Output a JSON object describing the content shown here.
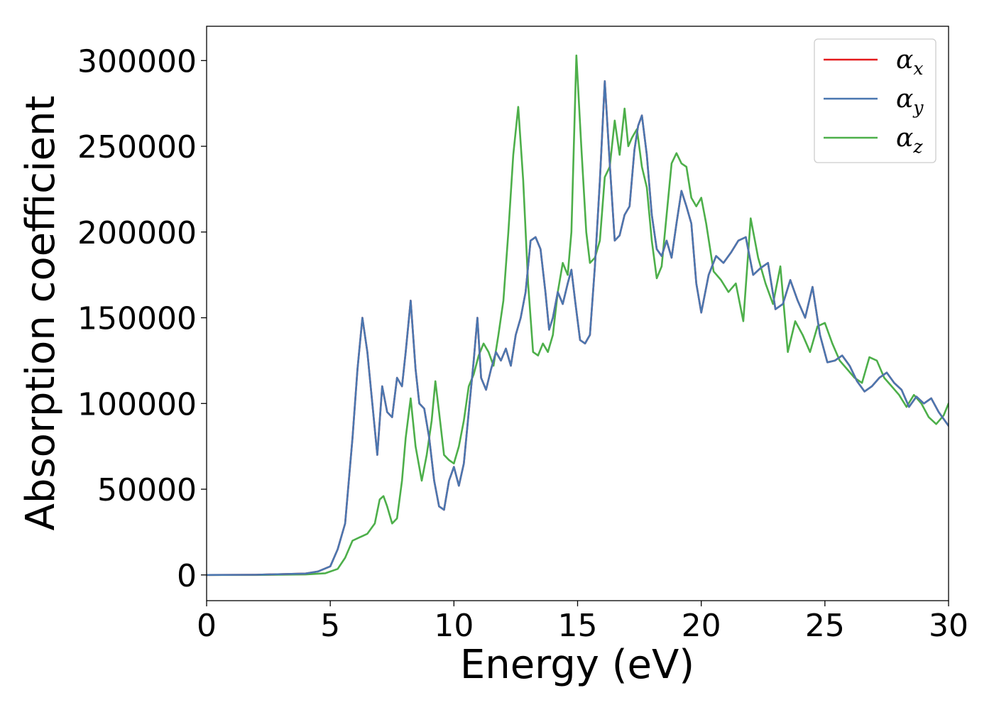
{
  "chart_data": {
    "type": "line",
    "title": "",
    "xlabel": "Energy (eV)",
    "ylabel": "Absorption coefficient",
    "xlim": [
      0,
      30
    ],
    "ylim": [
      -15000,
      320000
    ],
    "xticks": [
      0,
      5,
      10,
      15,
      20,
      25,
      30
    ],
    "yticks": [
      0,
      50000,
      100000,
      150000,
      200000,
      250000,
      300000
    ],
    "xtick_labels": [
      "0",
      "5",
      "10",
      "15",
      "20",
      "25",
      "30"
    ],
    "ytick_labels": [
      "0",
      "50000",
      "100000",
      "150000",
      "200000",
      "250000",
      "300000"
    ],
    "grid": false,
    "legend_position": "top-right",
    "series": [
      {
        "name": "α_x",
        "label_main": "α",
        "label_sub": "x",
        "color": "#e41a1c",
        "x": [
          0,
          2,
          4,
          4.5,
          5,
          5.3,
          5.6,
          5.9,
          6.1,
          6.3,
          6.5,
          6.7,
          6.9,
          7.1,
          7.3,
          7.5,
          7.7,
          7.9,
          8.05,
          8.25,
          8.45,
          8.6,
          8.8,
          9.0,
          9.2,
          9.4,
          9.6,
          9.8,
          10.0,
          10.2,
          10.4,
          10.6,
          10.8,
          10.95,
          11.1,
          11.3,
          11.5,
          11.7,
          11.9,
          12.1,
          12.3,
          12.5,
          12.7,
          12.9,
          13.1,
          13.3,
          13.5,
          13.7,
          13.85,
          14.0,
          14.2,
          14.4,
          14.6,
          14.75,
          14.9,
          15.1,
          15.3,
          15.5,
          15.7,
          15.9,
          16.1,
          16.3,
          16.5,
          16.7,
          16.9,
          17.1,
          17.3,
          17.45,
          17.6,
          17.8,
          18.0,
          18.2,
          18.4,
          18.6,
          18.8,
          19.0,
          19.2,
          19.4,
          19.6,
          19.8,
          20.0,
          20.3,
          20.6,
          20.9,
          21.2,
          21.5,
          21.8,
          22.1,
          22.4,
          22.7,
          23.0,
          23.3,
          23.6,
          23.9,
          24.2,
          24.5,
          24.8,
          25.1,
          25.4,
          25.7,
          26.0,
          26.3,
          26.6,
          26.9,
          27.2,
          27.5,
          27.8,
          28.1,
          28.4,
          28.7,
          29.0,
          29.3,
          29.6,
          30.0
        ],
        "y": [
          0,
          100,
          800,
          2000,
          5000,
          15000,
          30000,
          80000,
          120000,
          150000,
          130000,
          100000,
          70000,
          110000,
          95000,
          92000,
          115000,
          110000,
          130000,
          160000,
          120000,
          100000,
          97000,
          80000,
          55000,
          40000,
          38000,
          55000,
          63000,
          52000,
          65000,
          95000,
          125000,
          150000,
          115000,
          108000,
          120000,
          130000,
          125000,
          132000,
          122000,
          140000,
          150000,
          165000,
          195000,
          197000,
          190000,
          165000,
          143000,
          150000,
          165000,
          158000,
          170000,
          178000,
          160000,
          137000,
          135000,
          140000,
          180000,
          230000,
          288000,
          240000,
          195000,
          198000,
          210000,
          215000,
          248000,
          262000,
          268000,
          245000,
          210000,
          190000,
          186000,
          195000,
          185000,
          205000,
          224000,
          215000,
          205000,
          170000,
          153000,
          175000,
          186000,
          182000,
          188000,
          195000,
          197000,
          175000,
          179000,
          182000,
          155000,
          158000,
          172000,
          160000,
          150000,
          168000,
          140000,
          124000,
          125000,
          128000,
          122000,
          113000,
          107000,
          110000,
          115000,
          118000,
          112000,
          108000,
          98000,
          104000,
          100000,
          103000,
          95000,
          87000
        ]
      },
      {
        "name": "α_y",
        "label_main": "α",
        "label_sub": "y",
        "color": "#4a77b0",
        "x": [
          0,
          2,
          4,
          4.5,
          5,
          5.3,
          5.6,
          5.9,
          6.1,
          6.3,
          6.5,
          6.7,
          6.9,
          7.1,
          7.3,
          7.5,
          7.7,
          7.9,
          8.05,
          8.25,
          8.45,
          8.6,
          8.8,
          9.0,
          9.2,
          9.4,
          9.6,
          9.8,
          10.0,
          10.2,
          10.4,
          10.6,
          10.8,
          10.95,
          11.1,
          11.3,
          11.5,
          11.7,
          11.9,
          12.1,
          12.3,
          12.5,
          12.7,
          12.9,
          13.1,
          13.3,
          13.5,
          13.7,
          13.85,
          14.0,
          14.2,
          14.4,
          14.6,
          14.75,
          14.9,
          15.1,
          15.3,
          15.5,
          15.7,
          15.9,
          16.1,
          16.3,
          16.5,
          16.7,
          16.9,
          17.1,
          17.3,
          17.45,
          17.6,
          17.8,
          18.0,
          18.2,
          18.4,
          18.6,
          18.8,
          19.0,
          19.2,
          19.4,
          19.6,
          19.8,
          20.0,
          20.3,
          20.6,
          20.9,
          21.2,
          21.5,
          21.8,
          22.1,
          22.4,
          22.7,
          23.0,
          23.3,
          23.6,
          23.9,
          24.2,
          24.5,
          24.8,
          25.1,
          25.4,
          25.7,
          26.0,
          26.3,
          26.6,
          26.9,
          27.2,
          27.5,
          27.8,
          28.1,
          28.4,
          28.7,
          29.0,
          29.3,
          29.6,
          30.0
        ],
        "y": [
          0,
          100,
          800,
          2000,
          5000,
          15000,
          30000,
          80000,
          120000,
          150000,
          130000,
          100000,
          70000,
          110000,
          95000,
          92000,
          115000,
          110000,
          130000,
          160000,
          120000,
          100000,
          97000,
          80000,
          55000,
          40000,
          38000,
          55000,
          63000,
          52000,
          65000,
          95000,
          125000,
          150000,
          115000,
          108000,
          120000,
          130000,
          125000,
          132000,
          122000,
          140000,
          150000,
          165000,
          195000,
          197000,
          190000,
          165000,
          143000,
          150000,
          165000,
          158000,
          170000,
          178000,
          160000,
          137000,
          135000,
          140000,
          180000,
          230000,
          288000,
          240000,
          195000,
          198000,
          210000,
          215000,
          248000,
          262000,
          268000,
          245000,
          210000,
          190000,
          186000,
          195000,
          185000,
          205000,
          224000,
          215000,
          205000,
          170000,
          153000,
          175000,
          186000,
          182000,
          188000,
          195000,
          197000,
          175000,
          179000,
          182000,
          155000,
          158000,
          172000,
          160000,
          150000,
          168000,
          140000,
          124000,
          125000,
          128000,
          122000,
          113000,
          107000,
          110000,
          115000,
          118000,
          112000,
          108000,
          98000,
          104000,
          100000,
          103000,
          95000,
          87000
        ]
      },
      {
        "name": "α_z",
        "label_main": "α",
        "label_sub": "z",
        "color": "#4daf4a",
        "x": [
          0,
          2,
          4,
          4.8,
          5.3,
          5.6,
          5.9,
          6.2,
          6.5,
          6.8,
          7.0,
          7.15,
          7.3,
          7.5,
          7.7,
          7.9,
          8.05,
          8.25,
          8.45,
          8.7,
          8.9,
          9.1,
          9.25,
          9.4,
          9.6,
          9.8,
          10.0,
          10.2,
          10.4,
          10.6,
          10.8,
          11.0,
          11.2,
          11.4,
          11.6,
          11.8,
          12.0,
          12.2,
          12.4,
          12.6,
          12.8,
          13.0,
          13.2,
          13.4,
          13.6,
          13.8,
          14.0,
          14.2,
          14.4,
          14.6,
          14.75,
          14.95,
          15.15,
          15.35,
          15.5,
          15.7,
          15.9,
          16.1,
          16.3,
          16.5,
          16.7,
          16.9,
          17.05,
          17.2,
          17.4,
          17.6,
          17.8,
          18.0,
          18.2,
          18.4,
          18.6,
          18.8,
          19.0,
          19.2,
          19.4,
          19.6,
          19.8,
          20.0,
          20.2,
          20.5,
          20.8,
          21.1,
          21.4,
          21.7,
          22.0,
          22.3,
          22.6,
          22.9,
          23.2,
          23.5,
          23.8,
          24.1,
          24.4,
          24.7,
          25.0,
          25.3,
          25.6,
          25.9,
          26.2,
          26.5,
          26.8,
          27.1,
          27.4,
          27.7,
          28.0,
          28.3,
          28.6,
          28.9,
          29.2,
          29.5,
          29.8,
          30.0
        ],
        "y": [
          0,
          0,
          300,
          1000,
          3500,
          10000,
          20000,
          22000,
          24000,
          30000,
          44000,
          46000,
          40000,
          30000,
          33000,
          55000,
          80000,
          103000,
          75000,
          55000,
          70000,
          90000,
          113000,
          95000,
          70000,
          67000,
          65000,
          75000,
          90000,
          110000,
          117000,
          128000,
          135000,
          130000,
          122000,
          140000,
          160000,
          200000,
          245000,
          273000,
          230000,
          170000,
          130000,
          128000,
          135000,
          130000,
          140000,
          165000,
          182000,
          175000,
          200000,
          303000,
          250000,
          200000,
          182000,
          185000,
          195000,
          232000,
          238000,
          265000,
          245000,
          272000,
          250000,
          255000,
          260000,
          238000,
          226000,
          195000,
          173000,
          180000,
          210000,
          240000,
          246000,
          240000,
          238000,
          220000,
          215000,
          220000,
          205000,
          177000,
          172000,
          165000,
          170000,
          148000,
          208000,
          185000,
          170000,
          158000,
          180000,
          130000,
          148000,
          140000,
          130000,
          145000,
          147000,
          135000,
          125000,
          120000,
          115000,
          112000,
          127000,
          125000,
          115000,
          110000,
          105000,
          98000,
          105000,
          100000,
          92000,
          88000,
          93000,
          100000
        ]
      }
    ]
  }
}
